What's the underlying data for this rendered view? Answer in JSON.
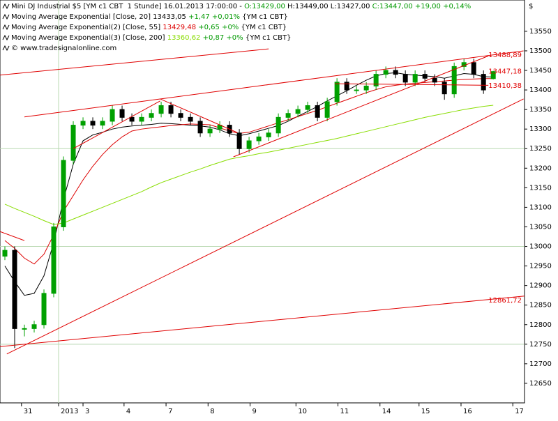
{
  "chart_data": {
    "type": "candlestick",
    "currency": "$",
    "legend_lines": [
      [
        {
          "text": "Mini DJ Industrial $5 [YM c1 CBT  1 Stunde] 16.01.2013 17:00:00 - ",
          "color": "#000000"
        },
        {
          "text": "O:13429,00",
          "color": "#009900"
        },
        {
          "text": " H:13449,00 L:13427,00 ",
          "color": "#000000"
        },
        {
          "text": "C:13447,00 +19,00 +0,14%",
          "color": "#009900"
        }
      ],
      [
        {
          "text": "Moving Average Exponential [Close, 20] 13433,05 ",
          "color": "#000000"
        },
        {
          "text": "+1,47 +0,01%",
          "color": "#009900"
        },
        {
          "text": " {YM c1 CBT}",
          "color": "#000000"
        }
      ],
      [
        {
          "text": "Moving Average Exponential(2) [Close, 55] ",
          "color": "#000000"
        },
        {
          "text": "13429,48",
          "color": "#dd0000"
        },
        {
          "text": " +0,65 +0%",
          "color": "#009900"
        },
        {
          "text": " {YM c1 CBT}",
          "color": "#000000"
        }
      ],
      [
        {
          "text": "Moving Average Exponential(3) [Close, 200] ",
          "color": "#000000"
        },
        {
          "text": "13360,62",
          "color": "#88dd00"
        },
        {
          "text": " +0,87 +0%",
          "color": "#009900"
        },
        {
          "text": " {YM c1 CBT}",
          "color": "#000000"
        }
      ],
      [
        {
          "text": "© www.tradesignalonline.com",
          "color": "#000000"
        }
      ]
    ],
    "x": [
      0.5,
      1.5,
      2.5,
      3.5,
      4.5,
      5.5,
      6.5,
      7.5,
      8.5,
      9.5,
      10.5,
      11.5,
      12.5,
      13.5,
      14.5,
      15.5,
      16.5,
      17.5,
      18.5,
      19.5,
      20.5,
      21.5,
      22.5,
      23.5,
      24.5,
      25.5,
      26.5,
      27.5,
      28.5,
      29.5,
      30.5,
      31.5,
      32.5,
      33.5,
      34.5,
      35.5,
      36.5,
      37.5,
      38.5,
      39.5,
      40.5,
      41.5,
      42.5,
      43.5,
      44.5,
      45.5,
      46.5,
      47.5,
      48.5,
      49.5,
      50.5
    ],
    "open": [
      12975,
      12990,
      12790,
      12790,
      12800,
      12880,
      13050,
      13220,
      13310,
      13320,
      13310,
      13320,
      13350,
      13330,
      13320,
      13330,
      13340,
      13360,
      13340,
      13330,
      13320,
      13290,
      13300,
      13310,
      13290,
      13250,
      13270,
      13280,
      13290,
      13330,
      13340,
      13350,
      13360,
      13330,
      13370,
      13420,
      13400,
      13400,
      13410,
      13440,
      13450,
      13440,
      13420,
      13440,
      13430,
      13420,
      13390,
      13460,
      13470,
      13440,
      13429
    ],
    "high": [
      13000,
      13000,
      12800,
      12810,
      12890,
      13060,
      13230,
      13320,
      13330,
      13330,
      13330,
      13360,
      13360,
      13340,
      13340,
      13350,
      13370,
      13370,
      13350,
      13340,
      13330,
      13310,
      13320,
      13320,
      13300,
      13280,
      13290,
      13300,
      13340,
      13350,
      13360,
      13370,
      13370,
      13380,
      13430,
      13430,
      13410,
      13420,
      13450,
      13460,
      13460,
      13450,
      13450,
      13450,
      13440,
      13430,
      13470,
      13480,
      13480,
      13450,
      13449
    ],
    "low": [
      12965,
      12740,
      12770,
      12780,
      12790,
      12870,
      13040,
      13210,
      13300,
      13300,
      13300,
      13310,
      13320,
      13310,
      13310,
      13320,
      13330,
      13330,
      13320,
      13310,
      13280,
      13280,
      13290,
      13280,
      13235,
      13240,
      13260,
      13270,
      13280,
      13320,
      13330,
      13340,
      13320,
      13320,
      13360,
      13390,
      13390,
      13390,
      13400,
      13430,
      13430,
      13410,
      13410,
      13420,
      13410,
      13375,
      13380,
      13450,
      13430,
      13390,
      13427
    ],
    "close": [
      12990,
      12790,
      12790,
      12800,
      12880,
      13050,
      13220,
      13310,
      13320,
      13310,
      13320,
      13350,
      13330,
      13320,
      13330,
      13340,
      13360,
      13340,
      13330,
      13320,
      13290,
      13300,
      13310,
      13290,
      13250,
      13270,
      13280,
      13290,
      13330,
      13340,
      13350,
      13360,
      13330,
      13370,
      13420,
      13400,
      13400,
      13410,
      13440,
      13450,
      13440,
      13420,
      13440,
      13430,
      13420,
      13390,
      13460,
      13470,
      13440,
      13400,
      13447
    ],
    "up_color": "#00a000",
    "down_color": "#000000",
    "series": [
      {
        "color": "#000000",
        "values": [
          12950,
          12910,
          12875,
          12880,
          12925,
          13010,
          13120,
          13210,
          13270,
          13285,
          13292,
          13300,
          13305,
          13308,
          13310,
          13312,
          13315,
          13314,
          13312,
          13310,
          13308,
          13305,
          13298,
          13288,
          13283,
          13288,
          13295,
          13302,
          13309,
          13320,
          13333,
          13345,
          13358,
          13372,
          13385,
          13398,
          13412,
          13425,
          13436,
          13442,
          13444,
          13440,
          13438,
          13436,
          13434,
          13430,
          13436,
          13442,
          13440,
          13434,
          13433
        ]
      },
      {
        "color": "#dd0000",
        "values": [
          13015,
          12995,
          12970,
          12955,
          12980,
          13030,
          13090,
          13130,
          13170,
          13205,
          13235,
          13260,
          13280,
          13295,
          13300,
          13303,
          13306,
          13309,
          13311,
          13313,
          13312,
          13311,
          13303,
          13295,
          13289,
          13292,
          13300,
          13308,
          13316,
          13324,
          13332,
          13340,
          13348,
          13357,
          13366,
          13375,
          13384,
          13393,
          13401,
          13408,
          13412,
          13415,
          13417,
          13419,
          13421,
          13423,
          13425,
          13427,
          13428,
          13429,
          13429
        ]
      },
      {
        "color": "#88dd00",
        "values": [
          13108,
          13097,
          13087,
          13077,
          13066,
          13056,
          13060,
          13070,
          13080,
          13090,
          13100,
          13110,
          13120,
          13130,
          13140,
          13152,
          13163,
          13172,
          13181,
          13190,
          13198,
          13207,
          13215,
          13223,
          13228,
          13232,
          13237,
          13241,
          13246,
          13251,
          13256,
          13261,
          13266,
          13271,
          13276,
          13282,
          13288,
          13294,
          13300,
          13306,
          13312,
          13318,
          13324,
          13330,
          13335,
          13340,
          13345,
          13350,
          13354,
          13358,
          13361
        ]
      }
    ],
    "trendline_color": "#e00000",
    "trendlines": [
      {
        "x": [
          0,
          27.5
        ],
        "y": [
          13438,
          13505
        ]
      },
      {
        "x": [
          2.5,
          53.6
        ],
        "y": [
          13331,
          13500
        ]
      },
      {
        "x": [
          0.7,
          53.6
        ],
        "y": [
          12725,
          13377
        ]
      },
      {
        "x": [
          0,
          53.7
        ],
        "y": [
          12744,
          12873
        ]
      },
      {
        "x": [
          16.4,
          24.3
        ],
        "y": [
          13377,
          13291
        ]
      },
      {
        "x": [
          7.5,
          16.4
        ],
        "y": [
          13250,
          13372
        ]
      },
      {
        "x": [
          23.9,
          50
        ],
        "y": [
          13229,
          13487
        ]
      },
      {
        "x": [
          0,
          2.5
        ],
        "y": [
          13038,
          13015
        ]
      },
      {
        "x": [
          34.3,
          50
        ],
        "y": [
          13416,
          13412
        ]
      }
    ],
    "price_labels": [
      {
        "value": 13488.89,
        "label": "13488,89"
      },
      {
        "value": 13447.18,
        "label": "13447,18"
      },
      {
        "value": 13410.38,
        "label": "13410,38"
      },
      {
        "value": 12861.72,
        "label": "12861,72"
      }
    ],
    "hline_color": "#b8d8b0",
    "hlines": [
      13250,
      13000,
      12750
    ],
    "vlines": [
      6.0
    ],
    "xlim": [
      0,
      53.7
    ],
    "xticks": [
      {
        "value": 2.2,
        "label": "31"
      },
      {
        "value": 6.0,
        "label": "2013"
      },
      {
        "value": 8.5,
        "label": "3"
      },
      {
        "value": 12.7,
        "label": "4"
      },
      {
        "value": 17.0,
        "label": "7"
      },
      {
        "value": 21.3,
        "label": "8"
      },
      {
        "value": 25.6,
        "label": "9"
      },
      {
        "value": 30.3,
        "label": "10"
      },
      {
        "value": 34.6,
        "label": "11"
      },
      {
        "value": 38.9,
        "label": "14"
      },
      {
        "value": 42.9,
        "label": "15"
      },
      {
        "value": 47.2,
        "label": "16"
      },
      {
        "value": 52.5,
        "label": "17"
      }
    ],
    "ylim": [
      12600,
      13630
    ],
    "yticks": [
      12650,
      12700,
      12750,
      12800,
      12850,
      12900,
      12950,
      13000,
      13050,
      13100,
      13150,
      13200,
      13250,
      13300,
      13350,
      13400,
      13450,
      13500,
      13550
    ]
  }
}
